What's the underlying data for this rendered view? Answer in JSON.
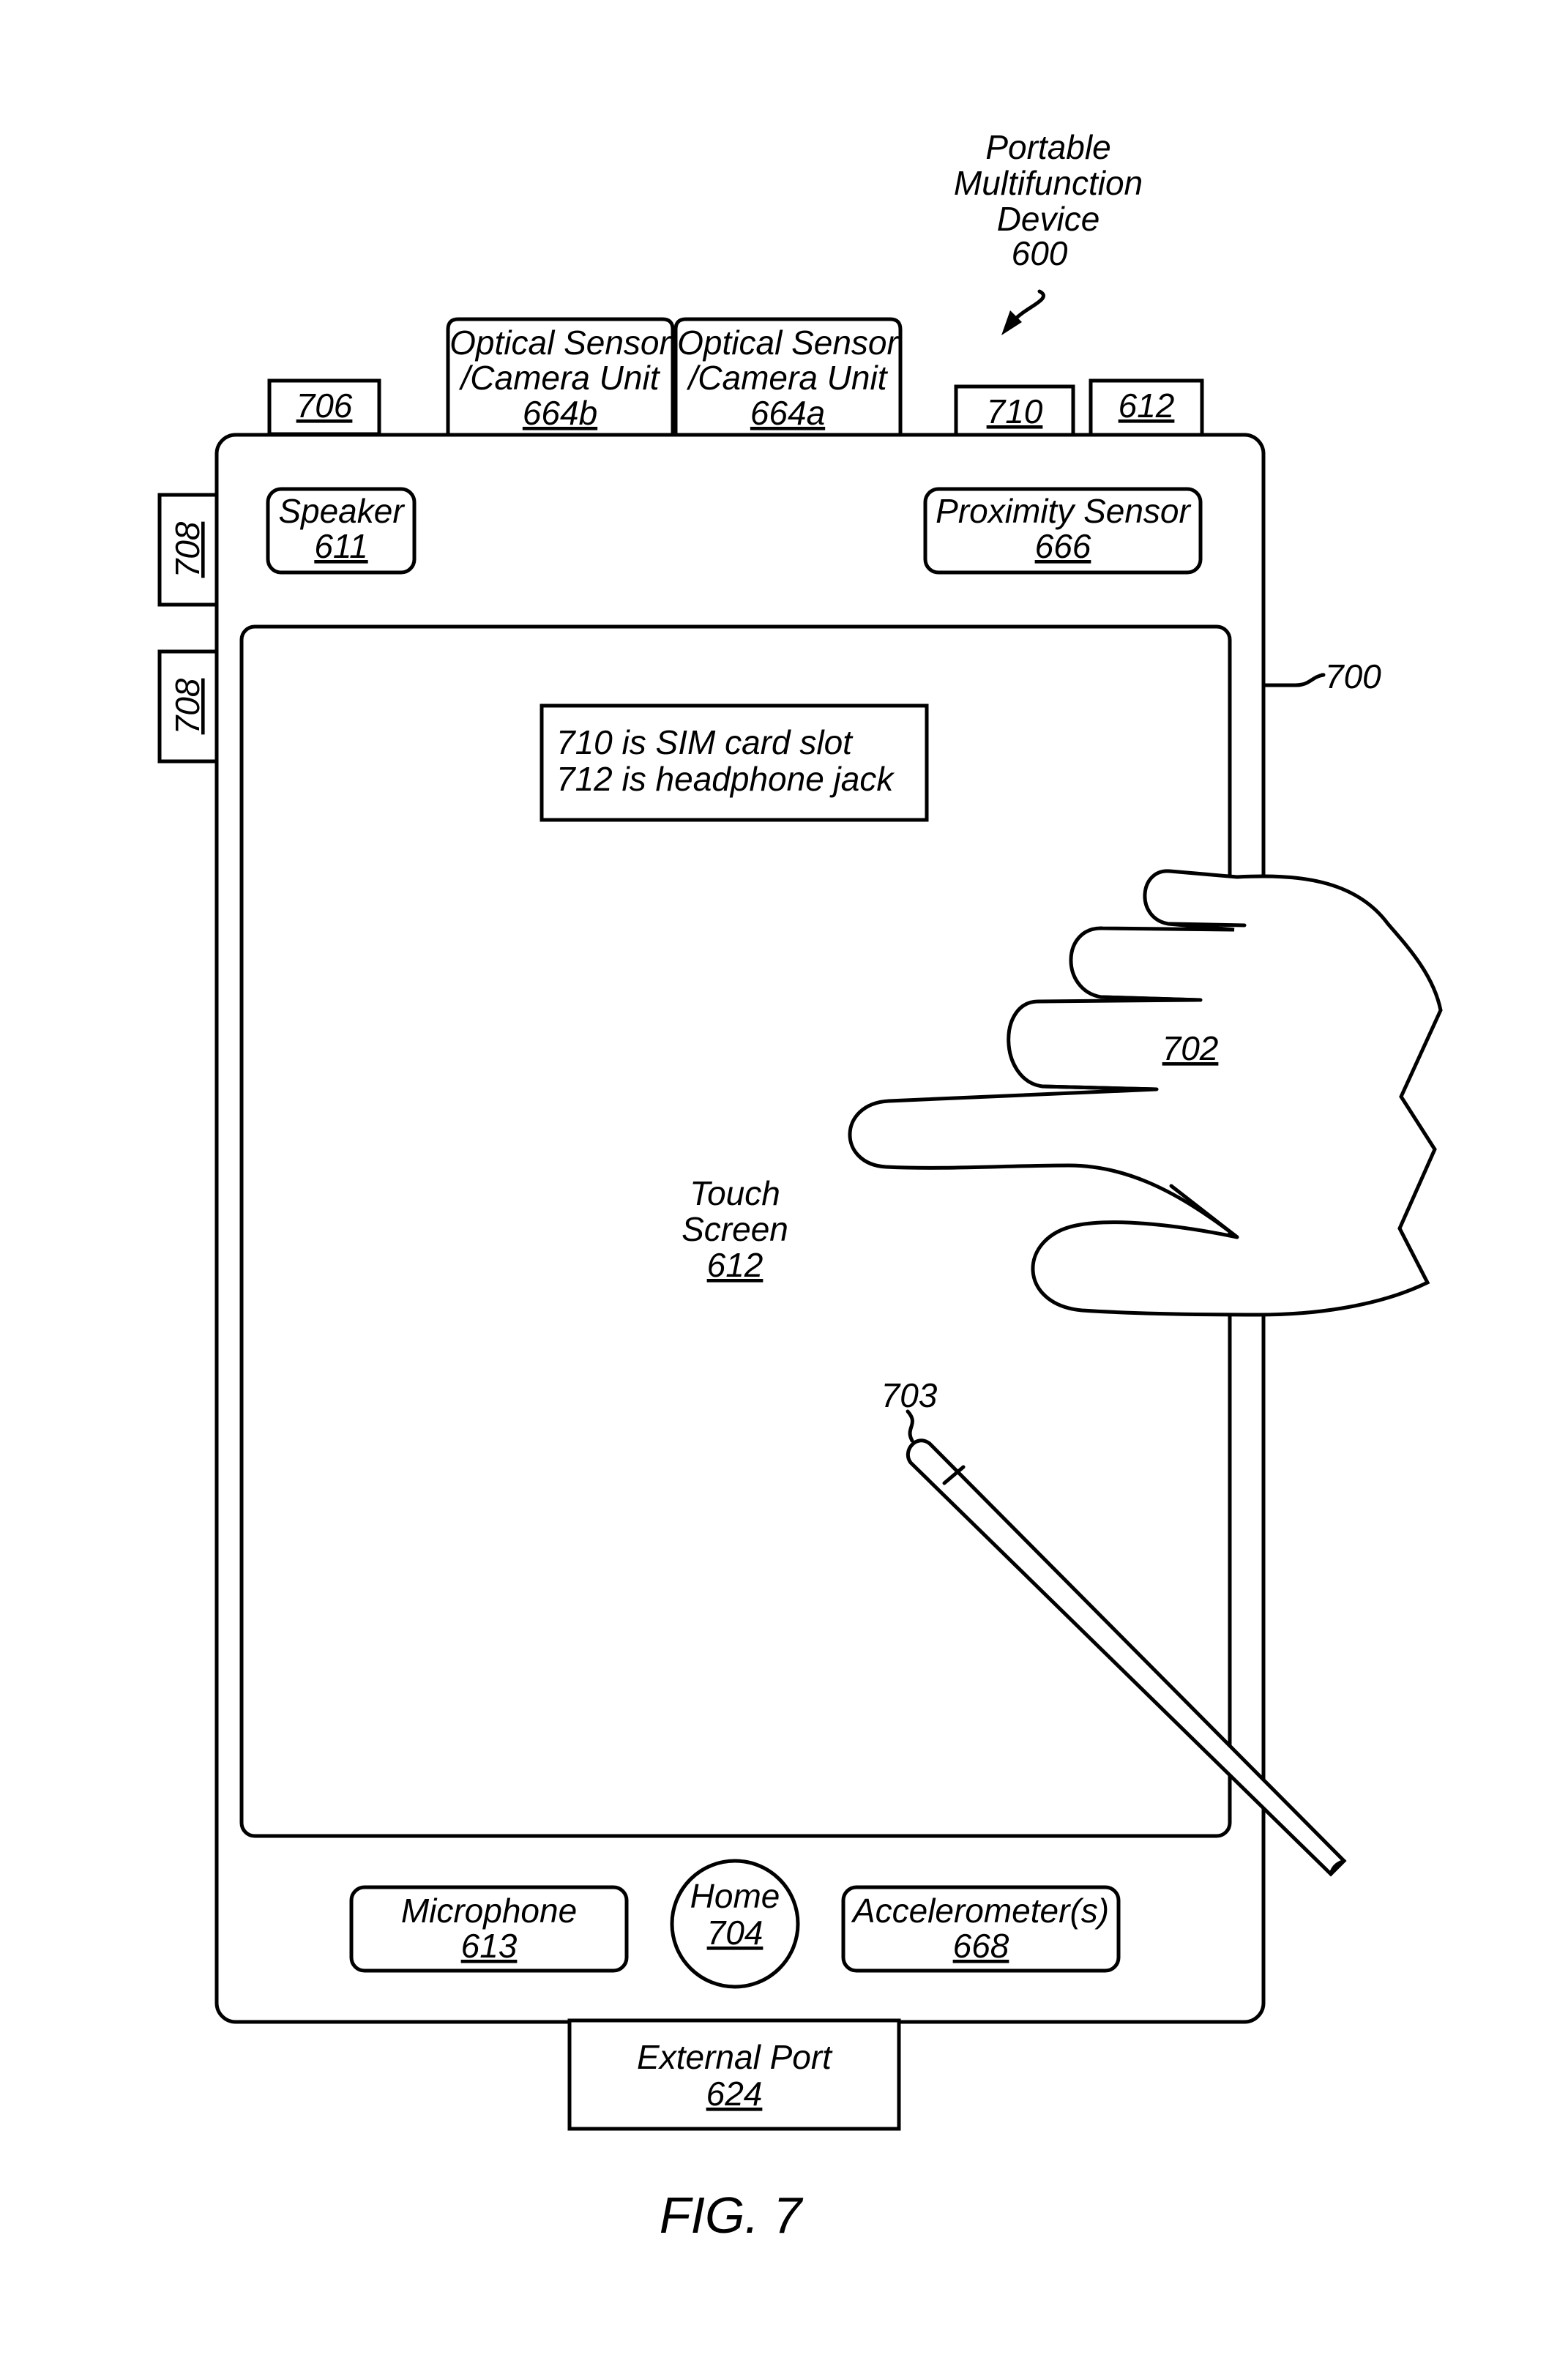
{
  "device": {
    "title_line1": "Portable",
    "title_line2": "Multifunction",
    "title_line3": "Device",
    "ref": "600",
    "body_ref": "700"
  },
  "top_components": {
    "c706": {
      "ref": "706"
    },
    "cam_b": {
      "line1": "Optical Sensor",
      "line2": "/Camera Unit",
      "ref": "664b"
    },
    "cam_a": {
      "line1": "Optical Sensor",
      "line2": "/Camera Unit",
      "ref": "664a"
    },
    "c710": {
      "ref": "710"
    },
    "c612": {
      "ref": "612"
    }
  },
  "side_buttons": {
    "upper": {
      "ref": "708"
    },
    "lower": {
      "ref": "708"
    }
  },
  "speaker": {
    "label": "Speaker",
    "ref": "611"
  },
  "proximity": {
    "label": "Proximity Sensor",
    "ref": "666"
  },
  "note": {
    "line1": "710 is SIM card slot",
    "line2": "712 is headphone jack"
  },
  "touch_screen": {
    "line1": "Touch",
    "line2": "Screen",
    "ref": "612"
  },
  "hand": {
    "ref": "702"
  },
  "stylus": {
    "ref": "703"
  },
  "microphone": {
    "label": "Microphone",
    "ref": "613"
  },
  "home": {
    "label": "Home",
    "ref": "704"
  },
  "accelerometer": {
    "label": "Accelerometer(s)",
    "ref": "668"
  },
  "external_port": {
    "label": "External Port",
    "ref": "624"
  },
  "figure_label": "FIG. 7"
}
